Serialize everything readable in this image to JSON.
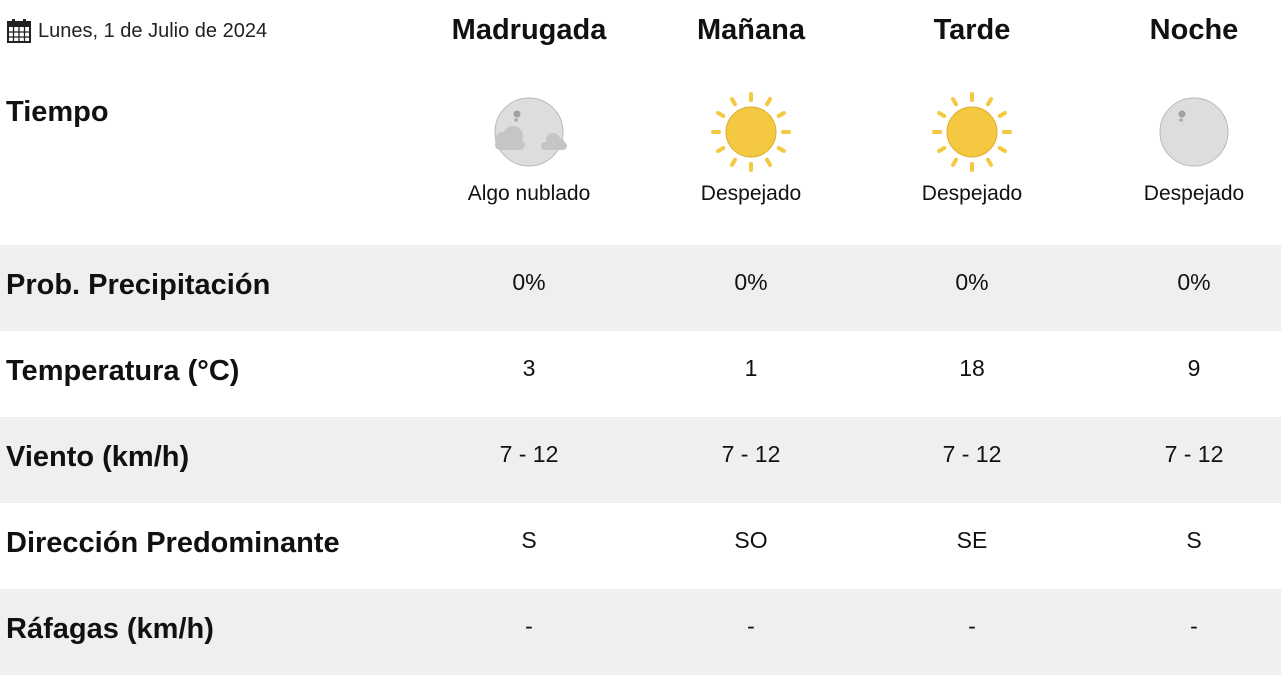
{
  "date": "Lunes, 1 de Julio de 2024",
  "periods": [
    "Madrugada",
    "Mañana",
    "Tarde",
    "Noche"
  ],
  "weather_label": "Tiempo",
  "weather": [
    {
      "icon": "moon-cloud-icon",
      "desc": "Algo nublado"
    },
    {
      "icon": "sun-icon",
      "desc": "Despejado"
    },
    {
      "icon": "sun-icon",
      "desc": "Despejado"
    },
    {
      "icon": "moon-icon",
      "desc": "Despejado"
    }
  ],
  "rows": [
    {
      "label": "Prob. Precipitación",
      "values": [
        "0%",
        "0%",
        "0%",
        "0%"
      ]
    },
    {
      "label": "Temperatura (°C)",
      "values": [
        "3",
        "1",
        "18",
        "9"
      ]
    },
    {
      "label": "Viento (km/h)",
      "values": [
        "7 - 12",
        "7 - 12",
        "7 - 12",
        "7 - 12"
      ]
    },
    {
      "label": "Dirección Predominante",
      "values": [
        "S",
        "SO",
        "SE",
        "S"
      ]
    },
    {
      "label": "Ráfagas (km/h)",
      "values": [
        "-",
        "-",
        "-",
        "-"
      ]
    }
  ],
  "colors": {
    "row_alt": "#efefef",
    "sun": "#f5c842",
    "moon": "#dcdddf"
  }
}
